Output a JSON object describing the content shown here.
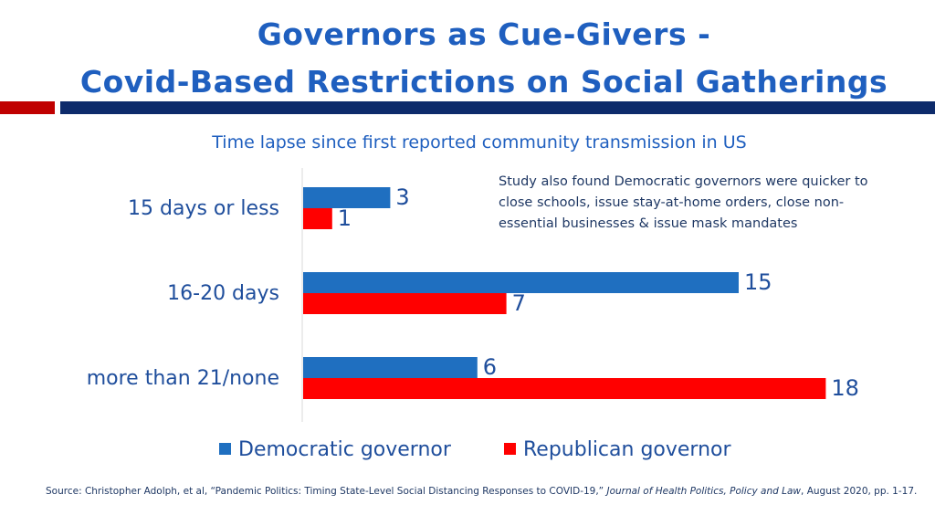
{
  "title_line1": "Governors as Cue-Givers -",
  "title_line2": "Covid-Based Restrictions on Social Gatherings",
  "colors": {
    "democratic": "#1f6fc0",
    "republican": "#ff0000",
    "title": "#1f5fbf",
    "accent_red": "#c00000",
    "accent_navy": "#0d2b6b"
  },
  "chart_data": {
    "type": "bar",
    "orientation": "horizontal",
    "title": "Time lapse since first reported community transmission in US",
    "categories": [
      "15 days or less",
      "16-20 days",
      "more than 21/none"
    ],
    "series": [
      {
        "name": "Democratic governor",
        "values": [
          3,
          15,
          6
        ]
      },
      {
        "name": "Republican governor",
        "values": [
          1,
          7,
          18
        ]
      }
    ],
    "xlim": [
      0,
      18
    ],
    "legend_position": "bottom",
    "annotation": "Study also found Democratic governors were quicker to close schools, issue stay-at-home orders, close non-essential businesses & issue mask mandates"
  },
  "source": {
    "prefix": "Source: Christopher Adolph, et al, “Pandemic Politics: Timing State-Level Social Distancing Responses to COVID-19,” ",
    "journal": "Journal of Health Politics, Policy and Law",
    "suffix": ",  August 2020, pp. 1-17."
  }
}
